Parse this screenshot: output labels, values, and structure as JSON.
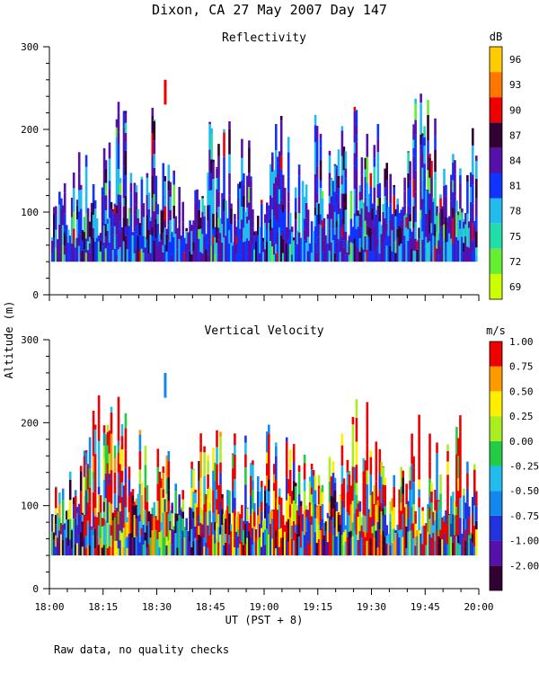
{
  "title": "Dixon, CA 27 May 2007  Day 147",
  "footnote": "Raw data, no quality checks",
  "ylabel": "Altitude (m)",
  "xlabel": "UT  (PST + 8)",
  "colors": {
    "background": "#ffffff",
    "axis": "#000000"
  },
  "chart_data": [
    {
      "type": "heatmap",
      "title": "Reflectivity",
      "xlabel": "UT  (PST + 8)",
      "ylabel": "Altitude (m)",
      "x_range": [
        "18:00",
        "20:00"
      ],
      "x_ticks": [
        "18:00",
        "18:15",
        "18:30",
        "18:45",
        "19:00",
        "19:15",
        "19:30",
        "19:45",
        "20:00"
      ],
      "ylim": [
        0,
        300
      ],
      "y_ticks": [
        0,
        100,
        200,
        300
      ],
      "data_altitude_range_m": [
        40,
        260
      ],
      "colorbar": {
        "unit": "dB",
        "labels": [
          "69",
          "72",
          "75",
          "78",
          "81",
          "84",
          "87",
          "90",
          "93",
          "96"
        ],
        "colors": [
          "#ccff00",
          "#66ee33",
          "#22ddaa",
          "#22bbee",
          "#1133ff",
          "#5511aa",
          "#330033",
          "#ee0000",
          "#ff7700",
          "#ffcc00"
        ]
      }
    },
    {
      "type": "heatmap",
      "title": "Vertical Velocity",
      "xlabel": "UT  (PST + 8)",
      "ylabel": "Altitude (m)",
      "x_range": [
        "18:00",
        "20:00"
      ],
      "x_ticks": [
        "18:00",
        "18:15",
        "18:30",
        "18:45",
        "19:00",
        "19:15",
        "19:30",
        "19:45",
        "20:00"
      ],
      "ylim": [
        0,
        300
      ],
      "y_ticks": [
        0,
        100,
        200,
        300
      ],
      "data_altitude_range_m": [
        40,
        260
      ],
      "colorbar": {
        "unit": "m/s",
        "labels": [
          "-2.00",
          "-1.00",
          "-0.75",
          "-0.50",
          "-0.25",
          "0.00",
          "0.25",
          "0.50",
          "0.75",
          "1.00"
        ],
        "colors": [
          "#330033",
          "#5511aa",
          "#2233dd",
          "#1188ee",
          "#22bbee",
          "#22cc44",
          "#aaee22",
          "#ffee00",
          "#ff9900",
          "#ee0000"
        ]
      }
    }
  ]
}
